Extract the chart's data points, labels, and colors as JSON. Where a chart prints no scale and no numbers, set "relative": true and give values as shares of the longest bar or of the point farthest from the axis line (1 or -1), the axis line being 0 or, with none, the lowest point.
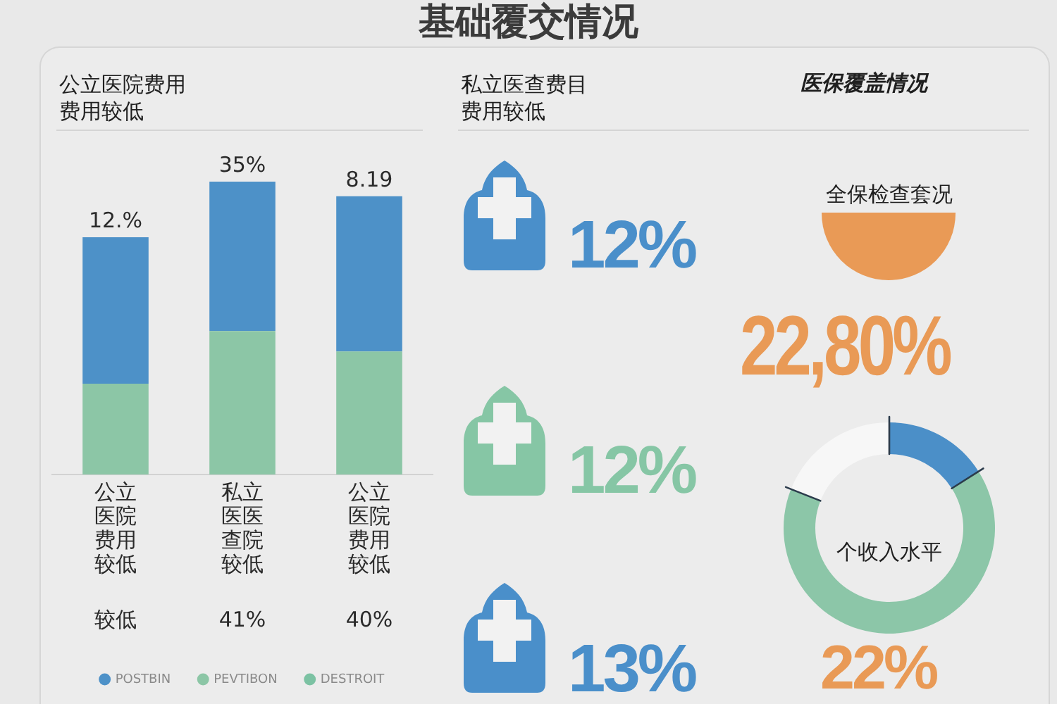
{
  "chart_data": [
    {
      "type": "other",
      "title": "基础覆交情况"
    },
    {
      "type": "bar",
      "title": "公立医院费用",
      "subtitle": "费用较低",
      "categories": [
        "公立医院费用较低",
        "私立医医查院较低",
        "公立医院费用较低"
      ],
      "stacked": true,
      "relative": true,
      "series": [
        {
          "name": "DESTROIT",
          "color": "#7cc2a3",
          "values": [
            null,
            null,
            null
          ]
        },
        {
          "name": "PEVTIBON",
          "color": "#8cc6a6",
          "values": [
            0.31,
            0.49,
            0.42
          ]
        },
        {
          "name": "POSTBIN",
          "color": "#4d91c8",
          "values": [
            0.5,
            0.51,
            0.53
          ]
        }
      ],
      "annotations": [
        "12.%",
        "35%",
        "8.19",
        "较低",
        "41%",
        "40%"
      ],
      "legend": "bottom"
    },
    {
      "type": "other",
      "title": "私立医查费目",
      "subtitle": "费用较低",
      "annotations": [
        "12%",
        "12%",
        "13%"
      ]
    },
    {
      "type": "donut",
      "title": "医保覆盖情况",
      "subtitle": "全保检查套况",
      "categories": [
        null,
        null,
        null
      ],
      "values": [
        16,
        65,
        19
      ],
      "colors": [
        "#4b8fc8",
        "#8cc6a8",
        "#f7f7f7"
      ],
      "annotations": [
        "22,80%",
        "个收入水平",
        "22%"
      ]
    }
  ]
}
